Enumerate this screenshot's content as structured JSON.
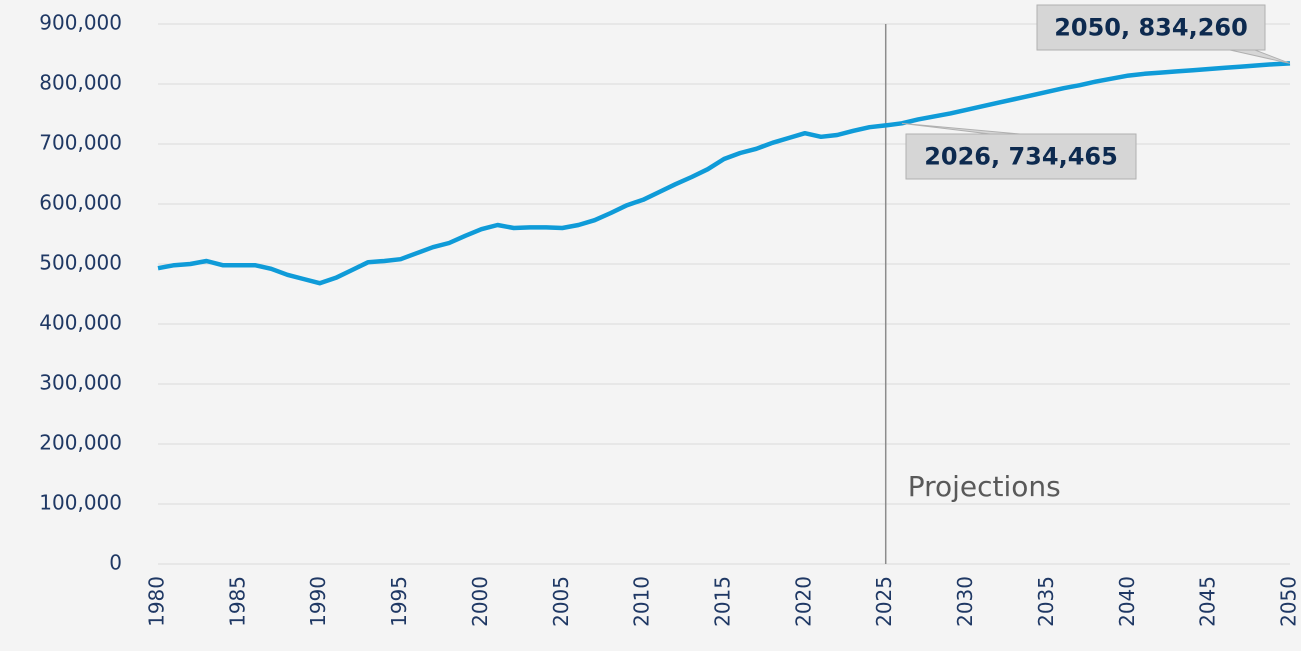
{
  "chart_data": {
    "type": "line",
    "x": [
      1980,
      1981,
      1982,
      1983,
      1984,
      1985,
      1986,
      1987,
      1988,
      1989,
      1990,
      1991,
      1992,
      1993,
      1994,
      1995,
      1996,
      1997,
      1998,
      1999,
      2000,
      2001,
      2002,
      2003,
      2004,
      2005,
      2006,
      2007,
      2008,
      2009,
      2010,
      2011,
      2012,
      2013,
      2014,
      2015,
      2016,
      2017,
      2018,
      2019,
      2020,
      2021,
      2022,
      2023,
      2024,
      2025,
      2026,
      2027,
      2028,
      2029,
      2030,
      2031,
      2032,
      2033,
      2034,
      2035,
      2036,
      2037,
      2038,
      2039,
      2040,
      2041,
      2042,
      2043,
      2044,
      2045,
      2046,
      2047,
      2048,
      2049,
      2050
    ],
    "values": [
      493000,
      498000,
      500000,
      505000,
      498000,
      498000,
      498000,
      492000,
      482000,
      475000,
      468000,
      477000,
      490000,
      503000,
      505000,
      508000,
      518000,
      528000,
      535000,
      547000,
      558000,
      565000,
      560000,
      561000,
      561000,
      560000,
      565000,
      573000,
      585000,
      598000,
      607000,
      620000,
      633000,
      645000,
      658000,
      675000,
      685000,
      692000,
      702000,
      710000,
      718000,
      712000,
      715000,
      722000,
      728000,
      731000,
      734465,
      741000,
      746000,
      751000,
      757000,
      763000,
      769000,
      775000,
      781000,
      787000,
      793000,
      798000,
      804000,
      809000,
      814000,
      817000,
      819000,
      821000,
      823000,
      825000,
      827000,
      829000,
      831000,
      833000,
      834260
    ],
    "color": "#0f9bd8",
    "xlim": [
      1980,
      2050
    ],
    "xticks": [
      1980,
      1985,
      1990,
      1995,
      2000,
      2005,
      2010,
      2015,
      2020,
      2025,
      2030,
      2035,
      2040,
      2045,
      2050
    ],
    "ylim": [
      0,
      900000
    ],
    "yticks": [
      0,
      {
        "value": 100000,
        "label": "100,000"
      },
      {
        "value": 200000,
        "label": "200,000"
      },
      {
        "value": 300000,
        "label": "300,000"
      },
      {
        "value": 400000,
        "label": "400,000"
      },
      {
        "value": 500000,
        "label": "500,000"
      },
      {
        "value": 600000,
        "label": "600,000"
      },
      {
        "value": 700000,
        "label": "700,000"
      },
      {
        "value": 800000,
        "label": "800,000"
      },
      {
        "value": 900000,
        "label": "900,000"
      }
    ],
    "grid": true,
    "annotations": [
      {
        "text": "2050, 834,260",
        "x": 2050,
        "y": 834260
      },
      {
        "text": "2026, 734,465",
        "x": 2026,
        "y": 734465
      }
    ],
    "marker_line": {
      "text": "Projections",
      "x": 2025
    }
  }
}
